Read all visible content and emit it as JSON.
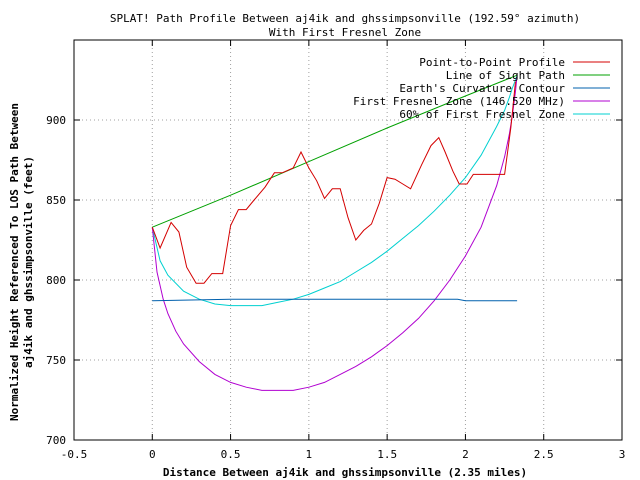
{
  "chart_data": {
    "type": "line",
    "title": "SPLAT! Path Profile Between aj4ik and ghssimpsonville (192.59° azimuth)",
    "subtitle": "With First Fresnel Zone",
    "xlabel": "Distance Between aj4ik and ghssimpsonville (2.35 miles)",
    "ylabel_lines": [
      "Normalized Height Referenced To LOS Path Between",
      "aj4ik and ghssimpsonville (feet)"
    ],
    "xlim": [
      -0.5,
      3
    ],
    "ylim": [
      700,
      950
    ],
    "x_ticks": [
      -0.5,
      0,
      0.5,
      1,
      1.5,
      2,
      2.5,
      3
    ],
    "x_tick_labels": [
      "-0.5",
      "0",
      "0.5",
      "1",
      "1.5",
      "2",
      "2.5",
      "3"
    ],
    "y_ticks": [
      700,
      750,
      800,
      850,
      900
    ],
    "y_tick_labels": [
      "700",
      "750",
      "800",
      "850",
      "900"
    ],
    "grid": true,
    "legend_position": "top-right",
    "series": [
      {
        "name": "Point-to-Point Profile",
        "color": "#d40000",
        "x": [
          0,
          0.05,
          0.12,
          0.17,
          0.22,
          0.28,
          0.33,
          0.38,
          0.45,
          0.5,
          0.55,
          0.6,
          0.65,
          0.72,
          0.78,
          0.83,
          0.9,
          0.95,
          1.0,
          1.05,
          1.1,
          1.15,
          1.2,
          1.25,
          1.3,
          1.35,
          1.4,
          1.45,
          1.5,
          1.55,
          1.6,
          1.65,
          1.72,
          1.78,
          1.83,
          1.87,
          1.92,
          1.96,
          2.01,
          2.05,
          2.1,
          2.15,
          2.25,
          2.29,
          2.32
        ],
        "y": [
          833,
          820,
          836,
          830,
          808,
          798,
          798,
          804,
          804,
          834,
          844,
          844,
          850,
          858,
          867,
          867,
          870,
          880,
          870,
          862,
          851,
          857,
          857,
          839,
          825,
          831,
          835,
          848,
          864,
          863,
          860,
          857,
          872,
          884,
          889,
          880,
          868,
          860,
          860,
          866,
          866,
          866,
          866,
          895,
          924
        ]
      },
      {
        "name": "Line of Sight Path",
        "color": "#00a000",
        "x": [
          0,
          0.5,
          1.0,
          1.5,
          2.0,
          2.33
        ],
        "y": [
          833,
          853,
          874,
          895,
          915,
          928
        ]
      },
      {
        "name": "Earth's Curvature Contour",
        "color": "#0060ad",
        "x": [
          0,
          0.5,
          1.0,
          1.5,
          1.95,
          2.0,
          2.33
        ],
        "y": [
          787,
          788,
          788,
          788,
          788,
          787,
          787
        ]
      },
      {
        "name": "First Fresnel Zone (146.520 MHz)",
        "color": "#b000d0",
        "x": [
          0,
          0.03,
          0.07,
          0.1,
          0.15,
          0.2,
          0.3,
          0.4,
          0.5,
          0.6,
          0.7,
          0.8,
          0.9,
          1.0,
          1.1,
          1.2,
          1.3,
          1.4,
          1.5,
          1.6,
          1.7,
          1.8,
          1.9,
          2.0,
          2.1,
          2.2,
          2.25,
          2.28,
          2.3,
          2.32,
          2.33
        ],
        "y": [
          833,
          805,
          788,
          779,
          768,
          760,
          749,
          741,
          736,
          733,
          731,
          731,
          731,
          733,
          736,
          741,
          746,
          752,
          759,
          767,
          776,
          787,
          800,
          815,
          833,
          859,
          877,
          891,
          903,
          918,
          928
        ]
      },
      {
        "name": "60% of First Fresnel Zone",
        "color": "#00d0d0",
        "x": [
          0,
          0.05,
          0.1,
          0.2,
          0.3,
          0.4,
          0.5,
          0.6,
          0.7,
          0.8,
          0.9,
          1.0,
          1.1,
          1.2,
          1.3,
          1.4,
          1.5,
          1.6,
          1.7,
          1.8,
          1.9,
          2.0,
          2.1,
          2.2,
          2.25,
          2.28,
          2.3,
          2.32,
          2.33
        ],
        "y": [
          833,
          812,
          803,
          793,
          788,
          785,
          784,
          784,
          784,
          786,
          788,
          791,
          795,
          799,
          805,
          811,
          818,
          826,
          834,
          843,
          853,
          864,
          878,
          896,
          906,
          914,
          920,
          925,
          928
        ]
      }
    ]
  }
}
